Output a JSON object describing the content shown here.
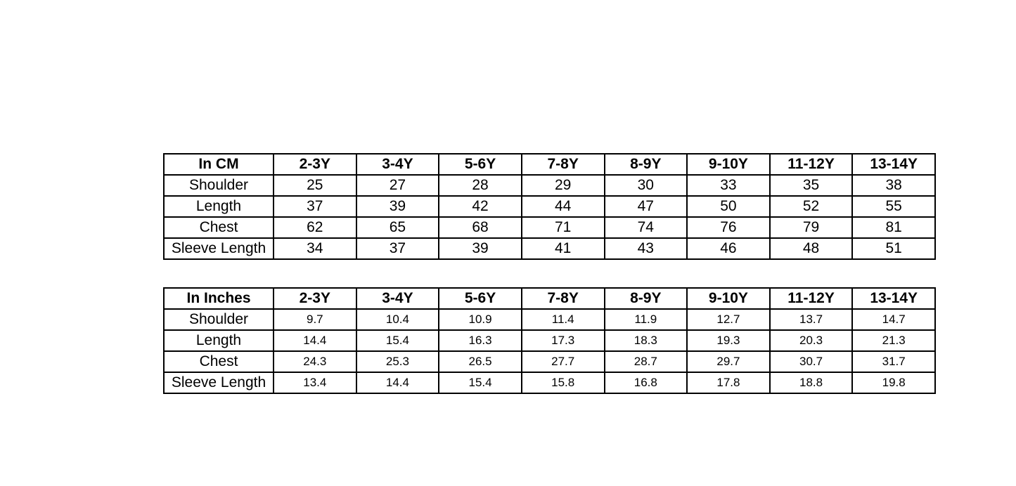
{
  "tables": [
    {
      "id": "t-cm",
      "name": "cm-size-table",
      "corner": "In CM",
      "sizes": [
        "2-3Y",
        "3-4Y",
        "5-6Y",
        "7-8Y",
        "8-9Y",
        "9-10Y",
        "11-12Y",
        "13-14Y"
      ],
      "rows": [
        {
          "label": "Shoulder",
          "values": [
            "25",
            "27",
            "28",
            "29",
            "30",
            "33",
            "35",
            "38"
          ]
        },
        {
          "label": "Length",
          "values": [
            "37",
            "39",
            "42",
            "44",
            "47",
            "50",
            "52",
            "55"
          ]
        },
        {
          "label": "Chest",
          "values": [
            "62",
            "65",
            "68",
            "71",
            "74",
            "76",
            "79",
            "81"
          ]
        },
        {
          "label": "Sleeve Length",
          "values": [
            "34",
            "37",
            "39",
            "41",
            "43",
            "46",
            "48",
            "51"
          ]
        }
      ]
    },
    {
      "id": "t-in",
      "name": "inches-size-table",
      "corner": "In Inches",
      "sizes": [
        "2-3Y",
        "3-4Y",
        "5-6Y",
        "7-8Y",
        "8-9Y",
        "9-10Y",
        "11-12Y",
        "13-14Y"
      ],
      "rows": [
        {
          "label": "Shoulder",
          "values": [
            "9.7",
            "10.4",
            "10.9",
            "11.4",
            "11.9",
            "12.7",
            "13.7",
            "14.7"
          ]
        },
        {
          "label": "Length",
          "values": [
            "14.4",
            "15.4",
            "16.3",
            "17.3",
            "18.3",
            "19.3",
            "20.3",
            "21.3"
          ]
        },
        {
          "label": "Chest",
          "values": [
            "24.3",
            "25.3",
            "26.5",
            "27.7",
            "28.7",
            "29.7",
            "30.7",
            "31.7"
          ]
        },
        {
          "label": "Sleeve Length",
          "values": [
            "13.4",
            "14.4",
            "15.4",
            "15.8",
            "16.8",
            "17.8",
            "18.8",
            "19.8"
          ]
        }
      ]
    }
  ]
}
